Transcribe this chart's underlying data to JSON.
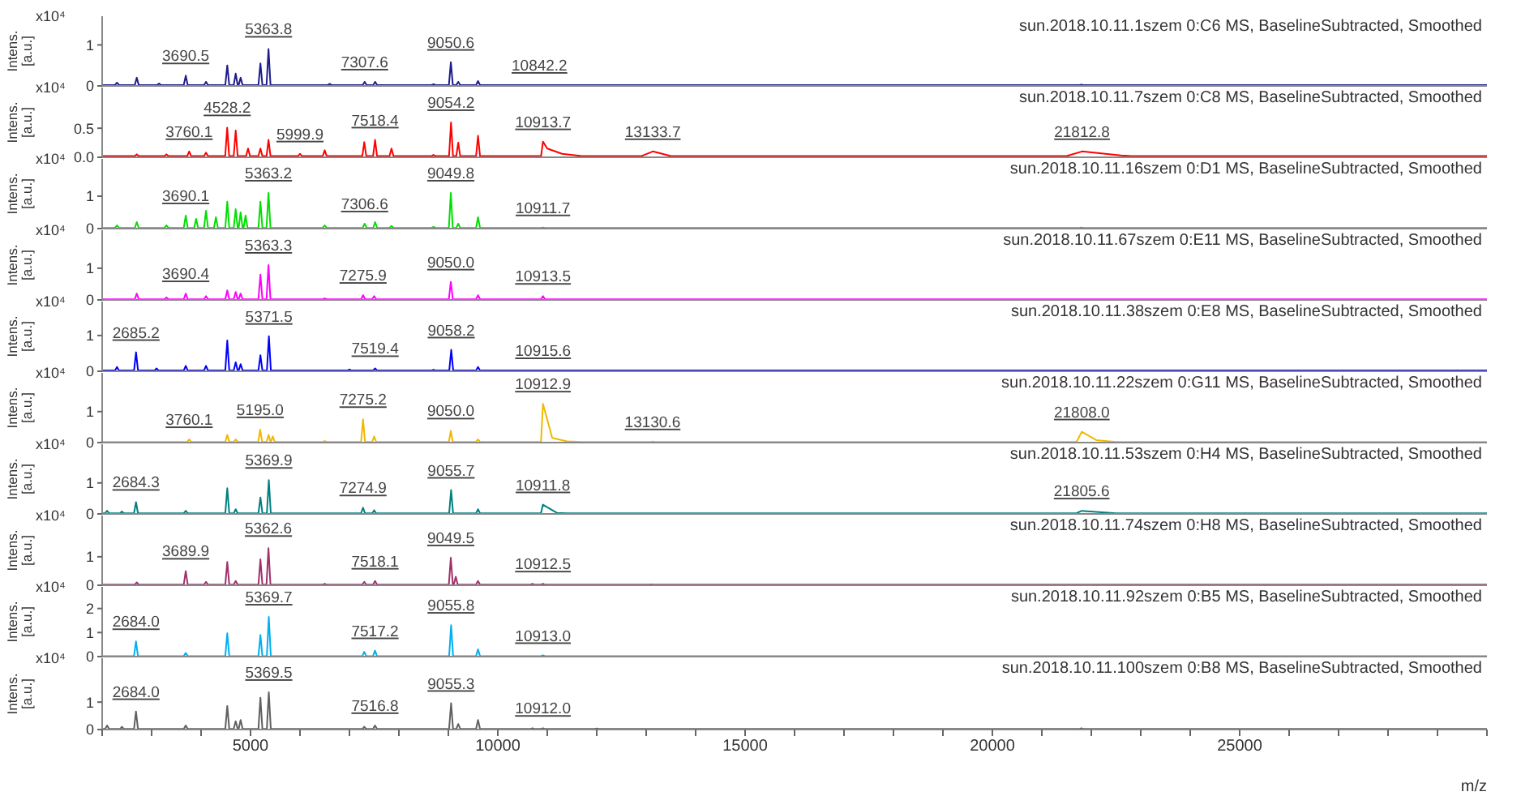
{
  "chart_data": [
    {
      "type": "line",
      "title": "sun.2018.10.11.1szem 0:C6 MS, BaselineSubtracted, Smoothed",
      "ylabel": "Intens. [a.u.]",
      "xlim": [
        2000,
        30000
      ],
      "ylim": [
        0,
        1.7
      ],
      "yticks": [
        0,
        1
      ],
      "tick_labels": "y",
      "color": "#1c1c8a",
      "x": [
        2000,
        2260,
        2300,
        2340,
        2660,
        2700,
        2740,
        3110,
        3150,
        3190,
        3650,
        3690.5,
        3730,
        4060,
        4100,
        4140,
        4490,
        4530,
        4570,
        4660,
        4700,
        4740,
        4760,
        4800,
        4840,
        5160,
        5200,
        5240,
        5324,
        5363.8,
        5404,
        6560,
        6600,
        6640,
        7268,
        7307.6,
        7348,
        7480,
        7520,
        7560,
        8660,
        8700,
        8740,
        9011,
        9050.6,
        9091,
        9160,
        9200,
        9240,
        9560,
        9600,
        9640,
        10802,
        10842.2,
        10882,
        21760,
        21800,
        21840,
        30000
      ],
      "values": [
        0.02,
        0.02,
        0.08,
        0.02,
        0.02,
        0.2,
        0.02,
        0.02,
        0.06,
        0.02,
        0.02,
        0.25,
        0.02,
        0.02,
        0.1,
        0.02,
        0.02,
        0.5,
        0.02,
        0.02,
        0.3,
        0.02,
        0.02,
        0.2,
        0.02,
        0.02,
        0.55,
        0.02,
        0.02,
        0.9,
        0.02,
        0.02,
        0.05,
        0.02,
        0.02,
        0.1,
        0.02,
        0.02,
        0.1,
        0.02,
        0.02,
        0.04,
        0.02,
        0.02,
        0.58,
        0.02,
        0.02,
        0.1,
        0.02,
        0.02,
        0.12,
        0.02,
        0.02,
        0.02,
        0.02,
        0.02,
        0.03,
        0.02,
        0.02
      ],
      "annotations": [
        "x10⁴",
        {
          "text": "3690.5",
          "x": 3690.5,
          "y": 0.25
        },
        {
          "text": "5363.8",
          "x": 5363.8,
          "y": 0.9
        },
        {
          "text": "7307.6",
          "x": 7307.6,
          "y": 0.1
        },
        {
          "text": "9050.6",
          "x": 9050.6,
          "y": 0.58
        },
        {
          "text": "10842.2",
          "x": 10842.2,
          "y": 0.02
        }
      ]
    },
    {
      "type": "line",
      "title": "sun.2018.10.11.7szem 0:C8 MS, BaselineSubtracted, Smoothed",
      "ylabel": "Intens. [a.u.]",
      "xlim": [
        2000,
        30000
      ],
      "ylim": [
        0,
        1.2
      ],
      "yticks": [
        {
          "value": 0,
          "label": "0.0"
        },
        0.5
      ],
      "tick_labels": "y",
      "color": "#ff0000",
      "x": [
        2000,
        2660,
        2700,
        2740,
        3260,
        3300,
        3340,
        3720,
        3760.1,
        3800,
        4060,
        4100,
        4140,
        4488,
        4528.2,
        4568,
        4660,
        4700,
        4740,
        4910,
        4950,
        4990,
        5160,
        5200,
        5240,
        5324,
        5364,
        5404,
        5960,
        5999.9,
        6040,
        6460,
        6500,
        6540,
        7260,
        7300,
        7340,
        7478,
        7518.4,
        7558,
        7810,
        7850,
        7890,
        8660,
        8700,
        8740,
        9014,
        9054.2,
        9094,
        9160,
        9200,
        9240,
        9560,
        9600,
        9640,
        10874,
        10913.7,
        11000,
        11300,
        11700,
        12900,
        13133.7,
        13500,
        21500,
        21812.8,
        22600,
        22800,
        30000
      ],
      "values": [
        0.02,
        0.02,
        0.05,
        0.02,
        0.02,
        0.05,
        0.02,
        0.02,
        0.1,
        0.02,
        0.02,
        0.08,
        0.02,
        0.02,
        0.51,
        0.02,
        0.02,
        0.46,
        0.02,
        0.02,
        0.15,
        0.02,
        0.02,
        0.15,
        0.02,
        0.02,
        0.3,
        0.02,
        0.02,
        0.06,
        0.02,
        0.02,
        0.12,
        0.02,
        0.02,
        0.26,
        0.02,
        0.02,
        0.3,
        0.02,
        0.02,
        0.15,
        0.02,
        0.02,
        0.04,
        0.02,
        0.02,
        0.6,
        0.02,
        0.02,
        0.25,
        0.02,
        0.02,
        0.37,
        0.02,
        0.02,
        0.27,
        0.15,
        0.06,
        0.02,
        0.02,
        0.1,
        0.02,
        0.02,
        0.1,
        0.03,
        0.02,
        0.02
      ],
      "annotations": [
        "x10⁴",
        {
          "text": "3760.1",
          "x": 3760.1,
          "y": 0.1
        },
        {
          "text": "4528.2",
          "x": 4528.2,
          "y": 0.51
        },
        {
          "text": "5999.9",
          "x": 5999.9,
          "y": 0.06
        },
        {
          "text": "7518.4",
          "x": 7518.4,
          "y": 0.3
        },
        {
          "text": "9054.2",
          "x": 9054.2,
          "y": 0.6
        },
        {
          "text": "10913.7",
          "x": 10913.7,
          "y": 0.27
        },
        {
          "text": "13133.7",
          "x": 13133.7,
          "y": 0.1
        },
        {
          "text": "21812.8",
          "x": 21812.8,
          "y": 0.1
        }
      ]
    },
    {
      "type": "line",
      "title": "sun.2018.10.11.16szem 0:D1 MS, BaselineSubtracted, Smoothed",
      "ylabel": "Intens. [a.u.]",
      "xlim": [
        2000,
        30000
      ],
      "ylim": [
        0,
        2.15
      ],
      "yticks": [
        0,
        1
      ],
      "tick_labels": "y",
      "color": "#00e000",
      "x": [
        2000,
        2260,
        2300,
        2340,
        2660,
        2700,
        2740,
        3260,
        3300,
        3340,
        3650,
        3690.1,
        3730,
        3860,
        3900,
        3940,
        4060,
        4100,
        4140,
        4260,
        4300,
        4340,
        4490,
        4530,
        4570,
        4660,
        4700,
        4740,
        4760,
        4800,
        4840,
        4860,
        4900,
        4940,
        5160,
        5200,
        5240,
        5323,
        5363.2,
        5403,
        6460,
        6500,
        6540,
        7267,
        7306.6,
        7347,
        7480,
        7520,
        7560,
        7810,
        7850,
        7890,
        8660,
        8700,
        8740,
        9010,
        9049.8,
        9090,
        9160,
        9200,
        9240,
        9560,
        9600,
        9640,
        10872,
        10911.7,
        10952,
        21760,
        21800,
        21840,
        30000
      ],
      "values": [
        0.02,
        0.02,
        0.1,
        0.02,
        0.02,
        0.2,
        0.02,
        0.02,
        0.1,
        0.02,
        0.02,
        0.4,
        0.02,
        0.02,
        0.3,
        0.02,
        0.02,
        0.55,
        0.02,
        0.02,
        0.35,
        0.02,
        0.02,
        0.83,
        0.02,
        0.02,
        0.6,
        0.02,
        0.02,
        0.5,
        0.02,
        0.02,
        0.4,
        0.02,
        0.02,
        0.83,
        0.02,
        0.02,
        1.1,
        0.02,
        0.02,
        0.1,
        0.02,
        0.02,
        0.15,
        0.02,
        0.02,
        0.2,
        0.02,
        0.02,
        0.08,
        0.02,
        0.02,
        0.05,
        0.02,
        0.02,
        1.1,
        0.02,
        0.02,
        0.15,
        0.02,
        0.02,
        0.35,
        0.02,
        0.02,
        0.03,
        0.02,
        0.02,
        0.03,
        0.02,
        0.02
      ],
      "annotations": [
        "x10⁴",
        {
          "text": "3690.1",
          "x": 3690.1,
          "y": 0.4
        },
        {
          "text": "5363.2",
          "x": 5363.2,
          "y": 1.1
        },
        {
          "text": "7306.6",
          "x": 7306.6,
          "y": 0.15
        },
        {
          "text": "9049.8",
          "x": 9049.8,
          "y": 1.1
        },
        {
          "text": "10911.7",
          "x": 10911.7,
          "y": 0.03
        }
      ]
    },
    {
      "type": "line",
      "title": "sun.2018.10.11.67szem 0:E11 MS, BaselineSubtracted, Smoothed",
      "ylabel": "Intens. [a.u.]",
      "xlim": [
        2000,
        30000
      ],
      "ylim": [
        0,
        2.2
      ],
      "yticks": [
        0,
        1
      ],
      "tick_labels": "y",
      "color": "#ff00ff",
      "x": [
        2000,
        2660,
        2700,
        2740,
        3260,
        3300,
        3340,
        3650,
        3690.4,
        3730,
        4060,
        4100,
        4140,
        4490,
        4530,
        4570,
        4660,
        4700,
        4740,
        4760,
        4800,
        4840,
        5160,
        5200,
        5240,
        5323,
        5363.3,
        5403,
        6460,
        6500,
        6540,
        7236,
        7275.9,
        7316,
        7460,
        7500,
        7540,
        9010,
        9050.0,
        9090,
        9560,
        9600,
        9640,
        10874,
        10913.5,
        10954,
        21760,
        21800,
        21840,
        30000
      ],
      "values": [
        0.02,
        0.02,
        0.2,
        0.02,
        0.02,
        0.08,
        0.02,
        0.02,
        0.2,
        0.02,
        0.02,
        0.12,
        0.02,
        0.02,
        0.3,
        0.02,
        0.02,
        0.25,
        0.02,
        0.02,
        0.2,
        0.02,
        0.02,
        0.8,
        0.02,
        0.02,
        1.1,
        0.02,
        0.02,
        0.05,
        0.02,
        0.02,
        0.15,
        0.02,
        0.02,
        0.12,
        0.02,
        0.02,
        0.57,
        0.02,
        0.02,
        0.15,
        0.02,
        0.02,
        0.12,
        0.02,
        0.02,
        0.02,
        0.02,
        0.02
      ],
      "annotations": [
        "x10⁴",
        {
          "text": "3690.4",
          "x": 3690.4,
          "y": 0.2
        },
        {
          "text": "5363.3",
          "x": 5363.3,
          "y": 1.1
        },
        {
          "text": "7275.9",
          "x": 7275.9,
          "y": 0.15
        },
        {
          "text": "9050.0",
          "x": 9050.0,
          "y": 0.57
        },
        {
          "text": "10913.5",
          "x": 10913.5,
          "y": 0.12
        }
      ]
    },
    {
      "type": "line",
      "title": "sun.2018.10.11.38szem 0:E8 MS, BaselineSubtracted, Smoothed",
      "ylabel": "Intens. [a.u.]",
      "xlim": [
        2000,
        30000
      ],
      "ylim": [
        0,
        1.95
      ],
      "yticks": [
        0,
        1
      ],
      "tick_labels": "y",
      "color": "#0000ff",
      "x": [
        2000,
        2260,
        2300,
        2340,
        2645,
        2685.2,
        2725,
        3060,
        3100,
        3140,
        3650,
        3690,
        3730,
        4060,
        4100,
        4140,
        4490,
        4530,
        4570,
        4660,
        4700,
        4740,
        4760,
        4800,
        4840,
        5160,
        5200,
        5240,
        5331,
        5371.5,
        5411,
        6960,
        7000,
        7040,
        7479,
        7519.4,
        7559,
        8660,
        8700,
        8740,
        9018,
        9058.2,
        9098,
        9560,
        9600,
        9640,
        10876,
        10915.6,
        10956,
        30000
      ],
      "values": [
        0.02,
        0.02,
        0.12,
        0.02,
        0.02,
        0.53,
        0.02,
        0.02,
        0.08,
        0.02,
        0.02,
        0.15,
        0.02,
        0.02,
        0.15,
        0.02,
        0.02,
        0.86,
        0.02,
        0.02,
        0.25,
        0.02,
        0.02,
        0.2,
        0.02,
        0.02,
        0.45,
        0.02,
        0.02,
        0.98,
        0.02,
        0.02,
        0.05,
        0.02,
        0.02,
        0.08,
        0.02,
        0.02,
        0.04,
        0.02,
        0.02,
        0.6,
        0.02,
        0.02,
        0.12,
        0.02,
        0.02,
        0.02,
        0.02,
        0.02
      ],
      "annotations": [
        "x10⁴",
        {
          "text": "2685.2",
          "x": 2685.2,
          "y": 0.53
        },
        {
          "text": "5371.5",
          "x": 5371.5,
          "y": 0.98
        },
        {
          "text": "7519.4",
          "x": 7519.4,
          "y": 0.08
        },
        {
          "text": "9058.2",
          "x": 9058.2,
          "y": 0.6
        },
        {
          "text": "10915.6",
          "x": 10915.6,
          "y": 0.02
        }
      ]
    },
    {
      "type": "line",
      "title": "sun.2018.10.11.22szem 0:G11 MS, BaselineSubtracted, Smoothed",
      "ylabel": "Intens. [a.u.]",
      "xlim": [
        2000,
        30000
      ],
      "ylim": [
        0,
        2.25
      ],
      "yticks": [
        0,
        1
      ],
      "tick_labels": "y",
      "color": "#f0b800",
      "x": [
        2000,
        3720,
        3760.1,
        3800,
        4490,
        4530,
        4570,
        4660,
        4700,
        4740,
        5155,
        5195.0,
        5235,
        5324,
        5364,
        5404,
        5410,
        5450,
        5490,
        6460,
        6500,
        6540,
        7235,
        7275.2,
        7315,
        7460,
        7500,
        7540,
        9010,
        9050.0,
        9090,
        9560,
        9600,
        9640,
        10873,
        10912.9,
        11100,
        11400,
        11700,
        13090,
        13130.6,
        13170,
        21700,
        21808.0,
        22100,
        22500,
        30000
      ],
      "values": [
        0.02,
        0.02,
        0.1,
        0.02,
        0.02,
        0.25,
        0.02,
        0.02,
        0.1,
        0.02,
        0.02,
        0.42,
        0.02,
        0.02,
        0.25,
        0.02,
        0.02,
        0.2,
        0.02,
        0.02,
        0.05,
        0.02,
        0.02,
        0.75,
        0.02,
        0.02,
        0.2,
        0.02,
        0.02,
        0.38,
        0.02,
        0.02,
        0.1,
        0.02,
        0.02,
        1.25,
        0.15,
        0.04,
        0.02,
        0.02,
        0.03,
        0.02,
        0.02,
        0.35,
        0.08,
        0.02,
        0.02
      ],
      "annotations": [
        "x10⁴",
        {
          "text": "3760.1",
          "x": 3760.1,
          "y": 0.1
        },
        {
          "text": "5195.0",
          "x": 5195.0,
          "y": 0.42
        },
        {
          "text": "7275.2",
          "x": 7275.2,
          "y": 0.75
        },
        {
          "text": "9050.0",
          "x": 9050.0,
          "y": 0.38
        },
        {
          "text": "10912.9",
          "x": 10912.9,
          "y": 1.25
        },
        {
          "text": "13130.6",
          "x": 13130.6,
          "y": 0.03
        },
        {
          "text": "21808.0",
          "x": 21808.0,
          "y": 0.35
        }
      ]
    },
    {
      "type": "line",
      "title": "sun.2018.10.11.53szem 0:H4 MS, BaselineSubtracted, Smoothed",
      "ylabel": "Intens. [a.u.]",
      "xlim": [
        2000,
        30000
      ],
      "ylim": [
        0,
        2.25
      ],
      "yticks": [
        0,
        1
      ],
      "tick_labels": "y",
      "color": "#008080",
      "x": [
        2000,
        2060,
        2100,
        2140,
        2360,
        2400,
        2440,
        2644,
        2684.3,
        2724,
        3650,
        3690,
        3730,
        4490,
        4530,
        4570,
        4660,
        4700,
        4740,
        5160,
        5200,
        5240,
        5330,
        5369.9,
        5410,
        7235,
        7274.9,
        7315,
        7460,
        7500,
        7540,
        9016,
        9055.7,
        9096,
        9560,
        9600,
        9640,
        10872,
        10911.8,
        11200,
        11400,
        21700,
        21805.6,
        22500,
        30000
      ],
      "values": [
        0.02,
        0.02,
        0.1,
        0.02,
        0.02,
        0.08,
        0.02,
        0.02,
        0.38,
        0.02,
        0.02,
        0.1,
        0.02,
        0.02,
        0.83,
        0.02,
        0.02,
        0.15,
        0.02,
        0.02,
        0.53,
        0.02,
        0.02,
        1.09,
        0.02,
        0.02,
        0.2,
        0.02,
        0.02,
        0.12,
        0.02,
        0.02,
        0.77,
        0.02,
        0.02,
        0.15,
        0.02,
        0.02,
        0.3,
        0.03,
        0.02,
        0.02,
        0.1,
        0.02,
        0.02
      ],
      "annotations": [
        "x10⁴",
        {
          "text": "2684.3",
          "x": 2684.3,
          "y": 0.38
        },
        {
          "text": "5369.9",
          "x": 5369.9,
          "y": 1.09
        },
        {
          "text": "7274.9",
          "x": 7274.9,
          "y": 0.2
        },
        {
          "text": "9055.7",
          "x": 9055.7,
          "y": 0.77
        },
        {
          "text": "10911.8",
          "x": 10911.8,
          "y": 0.3
        },
        {
          "text": "21805.6",
          "x": 21805.6,
          "y": 0.1
        }
      ]
    },
    {
      "type": "line",
      "title": "sun.2018.10.11.74szem 0:H8 MS, BaselineSubtracted, Smoothed",
      "ylabel": "Intens. [a.u.]",
      "xlim": [
        2000,
        30000
      ],
      "ylim": [
        0,
        2.45
      ],
      "yticks": [
        0,
        1
      ],
      "tick_labels": "y",
      "color": "#a0306a",
      "x": [
        2000,
        2660,
        2700,
        2740,
        3650,
        3689.9,
        3730,
        4060,
        4100,
        4140,
        4490,
        4530,
        4570,
        4660,
        4700,
        4740,
        5160,
        5200,
        5240,
        5323,
        5362.6,
        5403,
        6460,
        6500,
        6540,
        7260,
        7300,
        7340,
        7478,
        7518.1,
        7558,
        9010,
        9049.5,
        9090,
        9110,
        9150,
        9190,
        9560,
        9600,
        9640,
        10660,
        10700,
        10740,
        10872,
        10912.5,
        10952,
        13060,
        13100,
        13140,
        30000
      ],
      "values": [
        0.02,
        0.02,
        0.1,
        0.02,
        0.02,
        0.5,
        0.02,
        0.02,
        0.12,
        0.02,
        0.02,
        0.82,
        0.02,
        0.02,
        0.15,
        0.02,
        0.02,
        0.91,
        0.02,
        0.02,
        1.3,
        0.02,
        0.02,
        0.05,
        0.02,
        0.02,
        0.12,
        0.02,
        0.02,
        0.15,
        0.02,
        0.02,
        0.97,
        0.02,
        0.02,
        0.3,
        0.02,
        0.02,
        0.15,
        0.02,
        0.02,
        0.05,
        0.02,
        0.02,
        0.05,
        0.02,
        0.02,
        0.03,
        0.02,
        0.02
      ],
      "annotations": [
        "x10⁴",
        {
          "text": "3689.9",
          "x": 3689.9,
          "y": 0.5
        },
        {
          "text": "5362.6",
          "x": 5362.6,
          "y": 1.3
        },
        {
          "text": "7518.1",
          "x": 7518.1,
          "y": 0.15
        },
        {
          "text": "9049.5",
          "x": 9049.5,
          "y": 0.97
        },
        {
          "text": "10912.5",
          "x": 10912.5,
          "y": 0.05
        }
      ]
    },
    {
      "type": "line",
      "title": "sun.2018.10.11.92szem 0:B5 MS, BaselineSubtracted, Smoothed",
      "ylabel": "Intens. [a.u.]",
      "xlim": [
        2000,
        30000
      ],
      "ylim": [
        0,
        2.9
      ],
      "yticks": [
        0,
        1,
        2
      ],
      "tick_labels": "y",
      "color": "#00b0f0",
      "x": [
        2000,
        2644,
        2684.0,
        2724,
        3650,
        3690,
        3730,
        4490,
        4530,
        4570,
        5160,
        5200,
        5240,
        5330,
        5369.7,
        5410,
        7260,
        7300,
        7340,
        7477,
        7517.2,
        7557,
        9016,
        9055.8,
        9096,
        9560,
        9600,
        9640,
        10873,
        10913.0,
        10953,
        30000
      ],
      "values": [
        0.02,
        0.02,
        0.63,
        0.02,
        0.02,
        0.15,
        0.02,
        0.02,
        0.97,
        0.02,
        0.02,
        0.9,
        0.02,
        0.02,
        1.65,
        0.02,
        0.02,
        0.2,
        0.02,
        0.02,
        0.25,
        0.02,
        0.02,
        1.31,
        0.02,
        0.02,
        0.3,
        0.02,
        0.02,
        0.05,
        0.02,
        0.02
      ],
      "annotations": [
        "x10⁴",
        {
          "text": "2684.0",
          "x": 2684.0,
          "y": 0.63
        },
        {
          "text": "5369.7",
          "x": 5369.7,
          "y": 1.65
        },
        {
          "text": "7517.2",
          "x": 7517.2,
          "y": 0.25
        },
        {
          "text": "9055.8",
          "x": 9055.8,
          "y": 1.31
        },
        {
          "text": "10913.0",
          "x": 10913.0,
          "y": 0.05
        }
      ]
    },
    {
      "type": "line",
      "title": "sun.2018.10.11.100szem 0:B8 MS, BaselineSubtracted, Smoothed",
      "ylabel": "Intens. [a.u.]",
      "xlabel": "m/z",
      "xlim": [
        2000,
        30000
      ],
      "ylim": [
        0,
        2.6
      ],
      "yticks": [
        0,
        1
      ],
      "color": "#606060",
      "xticks": [
        {
          "value": 2000,
          "label": null
        },
        {
          "value": 3000,
          "label": null
        },
        {
          "value": 4000,
          "label": null
        },
        5000,
        {
          "value": 6000,
          "label": null
        },
        {
          "value": 7000,
          "label": null
        },
        {
          "value": 8000,
          "label": null
        },
        {
          "value": 9000,
          "label": null
        },
        10000,
        {
          "value": 11000,
          "label": null
        },
        {
          "value": 12000,
          "label": null
        },
        {
          "value": 13000,
          "label": null
        },
        {
          "value": 14000,
          "label": null
        },
        15000,
        {
          "value": 16000,
          "label": null
        },
        {
          "value": 17000,
          "label": null
        },
        {
          "value": 18000,
          "label": null
        },
        {
          "value": 19000,
          "label": null
        },
        20000,
        {
          "value": 21000,
          "label": null
        },
        {
          "value": 22000,
          "label": null
        },
        {
          "value": 23000,
          "label": null
        },
        {
          "value": 24000,
          "label": null
        },
        25000,
        {
          "value": 26000,
          "label": null
        },
        {
          "value": 27000,
          "label": null
        },
        {
          "value": 28000,
          "label": null
        },
        {
          "value": 29000,
          "label": null
        },
        {
          "value": 30000,
          "label": null
        }
      ],
      "x": [
        2000,
        2060,
        2100,
        2140,
        2360,
        2400,
        2440,
        2644,
        2684.0,
        2724,
        3650,
        3690,
        3730,
        4490,
        4530,
        4570,
        4660,
        4700,
        4740,
        4760,
        4800,
        4840,
        5160,
        5200,
        5240,
        5330,
        5369.5,
        5410,
        7260,
        7300,
        7340,
        7477,
        7516.8,
        7557,
        9015,
        9055.3,
        9095,
        9160,
        9200,
        9240,
        9560,
        9600,
        9640,
        10660,
        10700,
        10740,
        10872,
        10912.0,
        10952,
        11960,
        12000,
        12040,
        21760,
        21800,
        21840,
        30000
      ],
      "values": [
        0.02,
        0.02,
        0.15,
        0.02,
        0.02,
        0.1,
        0.02,
        0.02,
        0.66,
        0.02,
        0.02,
        0.15,
        0.02,
        0.02,
        0.86,
        0.02,
        0.02,
        0.3,
        0.02,
        0.02,
        0.35,
        0.02,
        0.02,
        1.16,
        0.02,
        0.02,
        1.36,
        0.02,
        0.02,
        0.1,
        0.02,
        0.02,
        0.15,
        0.02,
        0.02,
        0.96,
        0.02,
        0.02,
        0.2,
        0.02,
        0.02,
        0.35,
        0.02,
        0.02,
        0.05,
        0.02,
        0.02,
        0.05,
        0.02,
        0.02,
        0.04,
        0.02,
        0.02,
        0.05,
        0.02,
        0.02
      ],
      "annotations": [
        "x10⁴",
        {
          "text": "2684.0",
          "x": 2684.0,
          "y": 0.66
        },
        {
          "text": "5369.5",
          "x": 5369.5,
          "y": 1.36
        },
        {
          "text": "7516.8",
          "x": 7516.8,
          "y": 0.15
        },
        {
          "text": "9055.3",
          "x": 9055.3,
          "y": 0.96
        },
        {
          "text": "10912.0",
          "x": 10912.0,
          "y": 0.05
        }
      ]
    }
  ]
}
